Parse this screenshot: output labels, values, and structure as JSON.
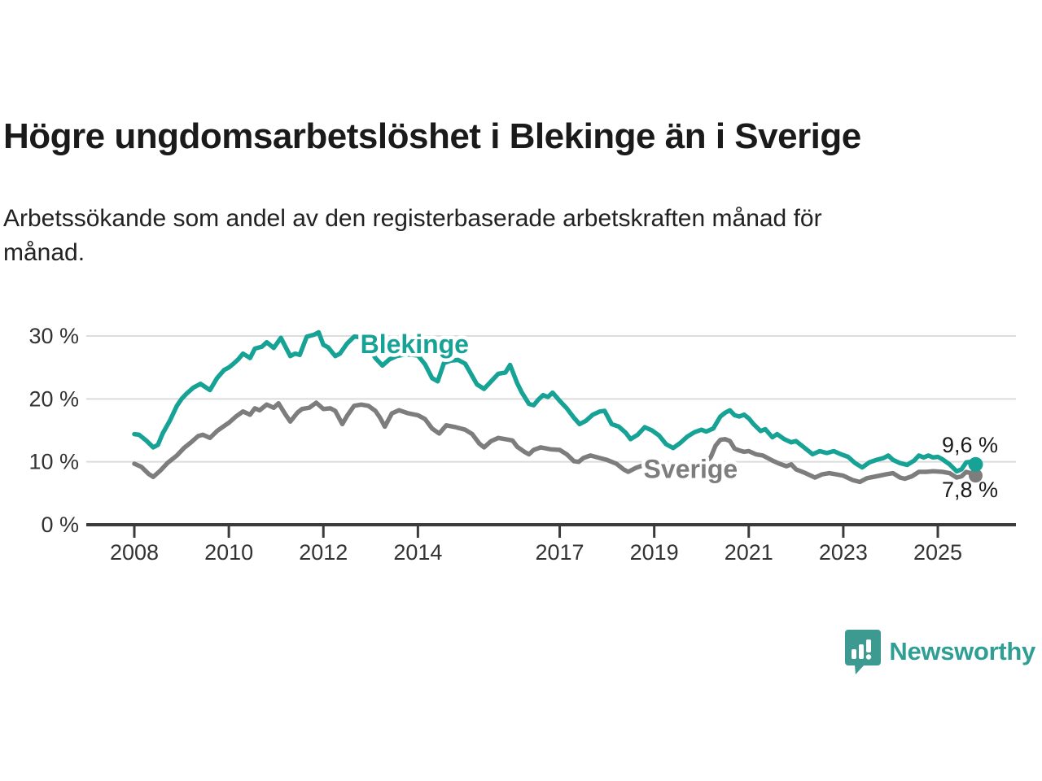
{
  "header": {
    "title": "Högre ungdomsarbetslöshet i Blekinge än i Sverige",
    "subtitle": "Arbetssökande som andel av den registerbaserade arbetskraften månad för månad."
  },
  "brand": {
    "name": "Newsworthy",
    "logo_icon": "speech-bubble-bar-chart",
    "logo_color": "#3d9a91",
    "text_color": "#2f9e94"
  },
  "chart_data": {
    "type": "line",
    "title": "Högre ungdomsarbetslöshet i Blekinge än i Sverige",
    "subtitle": "Arbetssökande som andel av den registerbaserade arbetskraften månad för månad.",
    "grid": true,
    "legend_position": "inline-labels",
    "colors": {
      "gridline": "#dcdcdc",
      "axis": "#3b3b3b",
      "tick_text": "#333333",
      "value_label_text": "#1a1a1a"
    },
    "y_axis": {
      "range": [
        0,
        32.5
      ],
      "ticks": [
        {
          "value": 0,
          "label": "0 %"
        },
        {
          "value": 10,
          "label": "10 %"
        },
        {
          "value": 20,
          "label": "20 %"
        },
        {
          "value": 30,
          "label": "30 %"
        }
      ]
    },
    "x_axis": {
      "range": [
        2006.95,
        2026.45
      ],
      "ticks": [
        {
          "value": 2008,
          "label": "2008"
        },
        {
          "value": 2010,
          "label": "2010"
        },
        {
          "value": 2012,
          "label": "2012"
        },
        {
          "value": 2014,
          "label": "2014"
        },
        {
          "value": 2017,
          "label": "2017"
        },
        {
          "value": 2019,
          "label": "2019"
        },
        {
          "value": 2021,
          "label": "2021"
        },
        {
          "value": 2023,
          "label": "2023"
        },
        {
          "value": 2025,
          "label": "2025"
        }
      ]
    },
    "series": [
      {
        "name": "Sverige",
        "color": "#7d7d7d",
        "end_label": "7,8 %",
        "end_value": 7.8,
        "label_anchor": {
          "x_year": 2019.77,
          "baseline_pct": 7.45
        },
        "points": [
          [
            2008.0,
            9.7
          ],
          [
            2008.15,
            9.2
          ],
          [
            2008.3,
            8.1
          ],
          [
            2008.4,
            7.6
          ],
          [
            2008.55,
            8.6
          ],
          [
            2008.7,
            9.8
          ],
          [
            2008.9,
            11.0
          ],
          [
            2009.05,
            12.2
          ],
          [
            2009.2,
            13.1
          ],
          [
            2009.35,
            14.1
          ],
          [
            2009.45,
            14.3
          ],
          [
            2009.6,
            13.8
          ],
          [
            2009.75,
            14.9
          ],
          [
            2009.9,
            15.7
          ],
          [
            2010.0,
            16.2
          ],
          [
            2010.15,
            17.2
          ],
          [
            2010.3,
            18.0
          ],
          [
            2010.45,
            17.5
          ],
          [
            2010.55,
            18.5
          ],
          [
            2010.65,
            18.2
          ],
          [
            2010.8,
            19.1
          ],
          [
            2010.95,
            18.6
          ],
          [
            2011.05,
            19.3
          ],
          [
            2011.2,
            17.5
          ],
          [
            2011.3,
            16.4
          ],
          [
            2011.45,
            17.8
          ],
          [
            2011.55,
            18.4
          ],
          [
            2011.7,
            18.6
          ],
          [
            2011.85,
            19.4
          ],
          [
            2012.0,
            18.4
          ],
          [
            2012.15,
            18.5
          ],
          [
            2012.25,
            18.1
          ],
          [
            2012.4,
            16.0
          ],
          [
            2012.5,
            17.3
          ],
          [
            2012.65,
            18.9
          ],
          [
            2012.8,
            19.1
          ],
          [
            2012.95,
            18.9
          ],
          [
            2013.1,
            18.1
          ],
          [
            2013.2,
            17.0
          ],
          [
            2013.3,
            15.6
          ],
          [
            2013.45,
            17.7
          ],
          [
            2013.6,
            18.2
          ],
          [
            2013.8,
            17.7
          ],
          [
            2014.0,
            17.4
          ],
          [
            2014.15,
            16.8
          ],
          [
            2014.3,
            15.3
          ],
          [
            2014.45,
            14.5
          ],
          [
            2014.6,
            15.8
          ],
          [
            2014.8,
            15.5
          ],
          [
            2015.0,
            15.1
          ],
          [
            2015.15,
            14.4
          ],
          [
            2015.3,
            12.9
          ],
          [
            2015.4,
            12.3
          ],
          [
            2015.55,
            13.3
          ],
          [
            2015.7,
            13.8
          ],
          [
            2015.85,
            13.6
          ],
          [
            2016.0,
            13.4
          ],
          [
            2016.1,
            12.4
          ],
          [
            2016.25,
            11.6
          ],
          [
            2016.35,
            11.2
          ],
          [
            2016.45,
            11.9
          ],
          [
            2016.6,
            12.3
          ],
          [
            2016.8,
            12.0
          ],
          [
            2017.0,
            11.9
          ],
          [
            2017.15,
            11.2
          ],
          [
            2017.3,
            10.1
          ],
          [
            2017.4,
            10.0
          ],
          [
            2017.5,
            10.6
          ],
          [
            2017.65,
            11.0
          ],
          [
            2017.85,
            10.6
          ],
          [
            2018.0,
            10.3
          ],
          [
            2018.2,
            9.7
          ],
          [
            2018.35,
            8.8
          ],
          [
            2018.45,
            8.4
          ],
          [
            2018.6,
            9.0
          ],
          [
            2018.75,
            9.4
          ],
          [
            2018.9,
            9.3
          ],
          [
            2019.05,
            9.0
          ],
          [
            2019.2,
            8.2
          ],
          [
            2019.33,
            7.7
          ],
          [
            2019.5,
            8.3
          ],
          [
            2019.65,
            8.8
          ],
          [
            2019.8,
            9.1
          ],
          [
            2019.95,
            9.4
          ],
          [
            2020.1,
            9.8
          ],
          [
            2020.2,
            10.8
          ],
          [
            2020.3,
            12.6
          ],
          [
            2020.4,
            13.5
          ],
          [
            2020.5,
            13.6
          ],
          [
            2020.6,
            13.3
          ],
          [
            2020.7,
            12.1
          ],
          [
            2020.8,
            11.8
          ],
          [
            2020.9,
            11.6
          ],
          [
            2021.0,
            11.7
          ],
          [
            2021.15,
            11.2
          ],
          [
            2021.3,
            11.0
          ],
          [
            2021.4,
            10.6
          ],
          [
            2021.5,
            10.2
          ],
          [
            2021.65,
            9.7
          ],
          [
            2021.8,
            9.3
          ],
          [
            2021.9,
            9.6
          ],
          [
            2022.0,
            8.8
          ],
          [
            2022.2,
            8.2
          ],
          [
            2022.4,
            7.5
          ],
          [
            2022.55,
            8.0
          ],
          [
            2022.7,
            8.2
          ],
          [
            2022.85,
            8.0
          ],
          [
            2023.0,
            7.8
          ],
          [
            2023.2,
            7.1
          ],
          [
            2023.35,
            6.8
          ],
          [
            2023.5,
            7.4
          ],
          [
            2023.7,
            7.7
          ],
          [
            2023.9,
            8.0
          ],
          [
            2024.05,
            8.2
          ],
          [
            2024.2,
            7.5
          ],
          [
            2024.3,
            7.3
          ],
          [
            2024.45,
            7.7
          ],
          [
            2024.6,
            8.4
          ],
          [
            2024.75,
            8.4
          ],
          [
            2024.9,
            8.5
          ],
          [
            2025.1,
            8.4
          ],
          [
            2025.25,
            8.2
          ],
          [
            2025.4,
            7.5
          ],
          [
            2025.5,
            7.7
          ],
          [
            2025.6,
            8.4
          ],
          [
            2025.7,
            8.2
          ],
          [
            2025.8,
            7.8
          ]
        ]
      },
      {
        "name": "Blekinge",
        "color": "#17a296",
        "end_label": "9,6 %",
        "end_value": 9.6,
        "label_anchor": {
          "x_year": 2013.93,
          "baseline_pct": 27.3
        },
        "points": [
          [
            2008.0,
            14.4
          ],
          [
            2008.1,
            14.3
          ],
          [
            2008.25,
            13.4
          ],
          [
            2008.4,
            12.3
          ],
          [
            2008.5,
            12.7
          ],
          [
            2008.6,
            14.5
          ],
          [
            2008.75,
            16.5
          ],
          [
            2008.9,
            18.9
          ],
          [
            2009.0,
            20.0
          ],
          [
            2009.1,
            20.8
          ],
          [
            2009.25,
            21.8
          ],
          [
            2009.4,
            22.4
          ],
          [
            2009.6,
            21.4
          ],
          [
            2009.75,
            23.3
          ],
          [
            2009.9,
            24.6
          ],
          [
            2010.0,
            25.0
          ],
          [
            2010.1,
            25.6
          ],
          [
            2010.2,
            26.3
          ],
          [
            2010.3,
            27.2
          ],
          [
            2010.45,
            26.5
          ],
          [
            2010.55,
            28.0
          ],
          [
            2010.7,
            28.3
          ],
          [
            2010.8,
            29.0
          ],
          [
            2010.95,
            28.1
          ],
          [
            2011.1,
            29.7
          ],
          [
            2011.3,
            26.8
          ],
          [
            2011.4,
            27.2
          ],
          [
            2011.5,
            27.0
          ],
          [
            2011.65,
            29.9
          ],
          [
            2011.8,
            30.2
          ],
          [
            2011.9,
            30.6
          ],
          [
            2012.0,
            28.6
          ],
          [
            2012.1,
            28.2
          ],
          [
            2012.25,
            26.8
          ],
          [
            2012.35,
            27.2
          ],
          [
            2012.5,
            28.8
          ],
          [
            2012.65,
            29.9
          ],
          [
            2012.8,
            29.8
          ],
          [
            2012.95,
            28.5
          ],
          [
            2013.1,
            26.5
          ],
          [
            2013.25,
            25.3
          ],
          [
            2013.4,
            26.3
          ],
          [
            2013.55,
            26.8
          ],
          [
            2013.75,
            27.1
          ],
          [
            2014.0,
            26.9
          ],
          [
            2014.15,
            25.5
          ],
          [
            2014.3,
            23.3
          ],
          [
            2014.42,
            22.8
          ],
          [
            2014.55,
            25.7
          ],
          [
            2014.7,
            26.1
          ],
          [
            2014.85,
            26.2
          ],
          [
            2015.0,
            25.6
          ],
          [
            2015.1,
            24.3
          ],
          [
            2015.25,
            22.3
          ],
          [
            2015.4,
            21.6
          ],
          [
            2015.55,
            22.8
          ],
          [
            2015.7,
            24.0
          ],
          [
            2015.85,
            24.2
          ],
          [
            2015.95,
            25.4
          ],
          [
            2016.1,
            22.5
          ],
          [
            2016.2,
            21.0
          ],
          [
            2016.35,
            19.2
          ],
          [
            2016.45,
            19.0
          ],
          [
            2016.55,
            19.9
          ],
          [
            2016.65,
            20.6
          ],
          [
            2016.75,
            20.3
          ],
          [
            2016.85,
            21.0
          ],
          [
            2017.0,
            19.7
          ],
          [
            2017.15,
            18.5
          ],
          [
            2017.3,
            17.0
          ],
          [
            2017.42,
            16.0
          ],
          [
            2017.55,
            16.5
          ],
          [
            2017.7,
            17.5
          ],
          [
            2017.85,
            18.0
          ],
          [
            2017.95,
            18.1
          ],
          [
            2018.1,
            16.0
          ],
          [
            2018.25,
            15.6
          ],
          [
            2018.4,
            14.6
          ],
          [
            2018.5,
            13.6
          ],
          [
            2018.65,
            14.3
          ],
          [
            2018.8,
            15.5
          ],
          [
            2018.95,
            15.0
          ],
          [
            2019.1,
            14.2
          ],
          [
            2019.25,
            12.8
          ],
          [
            2019.4,
            12.2
          ],
          [
            2019.55,
            13.0
          ],
          [
            2019.7,
            14.0
          ],
          [
            2019.85,
            14.7
          ],
          [
            2020.0,
            15.1
          ],
          [
            2020.1,
            14.8
          ],
          [
            2020.25,
            15.3
          ],
          [
            2020.4,
            17.2
          ],
          [
            2020.5,
            17.8
          ],
          [
            2020.6,
            18.2
          ],
          [
            2020.7,
            17.4
          ],
          [
            2020.8,
            17.2
          ],
          [
            2020.9,
            17.5
          ],
          [
            2021.0,
            16.9
          ],
          [
            2021.1,
            16.0
          ],
          [
            2021.25,
            14.9
          ],
          [
            2021.35,
            15.2
          ],
          [
            2021.5,
            13.9
          ],
          [
            2021.6,
            14.4
          ],
          [
            2021.75,
            13.6
          ],
          [
            2021.9,
            13.1
          ],
          [
            2022.0,
            13.3
          ],
          [
            2022.2,
            12.1
          ],
          [
            2022.35,
            11.2
          ],
          [
            2022.5,
            11.7
          ],
          [
            2022.65,
            11.4
          ],
          [
            2022.8,
            11.7
          ],
          [
            2022.95,
            11.2
          ],
          [
            2023.1,
            10.8
          ],
          [
            2023.25,
            9.8
          ],
          [
            2023.4,
            9.1
          ],
          [
            2023.55,
            9.9
          ],
          [
            2023.7,
            10.3
          ],
          [
            2023.85,
            10.6
          ],
          [
            2023.95,
            11.0
          ],
          [
            2024.05,
            10.3
          ],
          [
            2024.2,
            9.8
          ],
          [
            2024.35,
            9.5
          ],
          [
            2024.5,
            10.2
          ],
          [
            2024.6,
            11.0
          ],
          [
            2024.7,
            10.7
          ],
          [
            2024.8,
            11.0
          ],
          [
            2024.9,
            10.7
          ],
          [
            2025.0,
            10.8
          ],
          [
            2025.1,
            10.4
          ],
          [
            2025.25,
            9.6
          ],
          [
            2025.4,
            8.5
          ],
          [
            2025.5,
            8.8
          ],
          [
            2025.6,
            9.9
          ],
          [
            2025.7,
            10.0
          ],
          [
            2025.8,
            9.6
          ]
        ]
      }
    ]
  }
}
